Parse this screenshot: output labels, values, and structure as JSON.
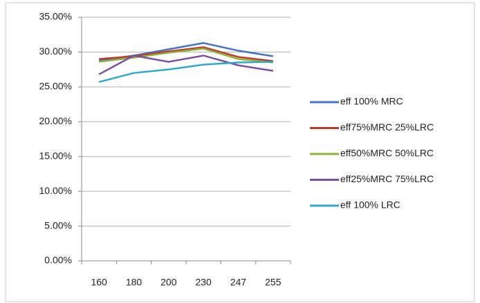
{
  "chart_data": {
    "type": "line",
    "categories": [
      "160",
      "180",
      "200",
      "230",
      "247",
      "255"
    ],
    "series": [
      {
        "name": "eff 100% MRC",
        "color": "#4472c4",
        "values": [
          28.8,
          29.5,
          30.4,
          31.3,
          30.2,
          29.4
        ]
      },
      {
        "name": "eff75%MRC 25%LRC",
        "color": "#c0392b",
        "values": [
          29.0,
          29.4,
          30.1,
          30.7,
          29.3,
          28.7
        ]
      },
      {
        "name": "eff50%MRC 50%LRC",
        "color": "#8db33f",
        "values": [
          28.6,
          29.2,
          29.9,
          30.5,
          29.0,
          28.5
        ]
      },
      {
        "name": "eff25%MRC 75%LRC",
        "color": "#7a4fa0",
        "values": [
          26.8,
          29.5,
          28.6,
          29.5,
          28.1,
          27.3
        ]
      },
      {
        "name": "eff 100% LRC",
        "color": "#2fa8c8",
        "values": [
          25.7,
          27.0,
          27.5,
          28.2,
          28.5,
          28.6
        ]
      }
    ],
    "ylim": [
      0,
      35
    ],
    "yticks": [
      {
        "value": 0,
        "label": "0.00%"
      },
      {
        "value": 5,
        "label": "5.00%"
      },
      {
        "value": 10,
        "label": "10.00%"
      },
      {
        "value": 15,
        "label": "15.00%"
      },
      {
        "value": 20,
        "label": "20.00%"
      },
      {
        "value": 25,
        "label": "25.00%"
      },
      {
        "value": 30,
        "label": "30.00%"
      },
      {
        "value": 35,
        "label": "35.00%"
      }
    ],
    "grid": true,
    "legend": "right"
  }
}
